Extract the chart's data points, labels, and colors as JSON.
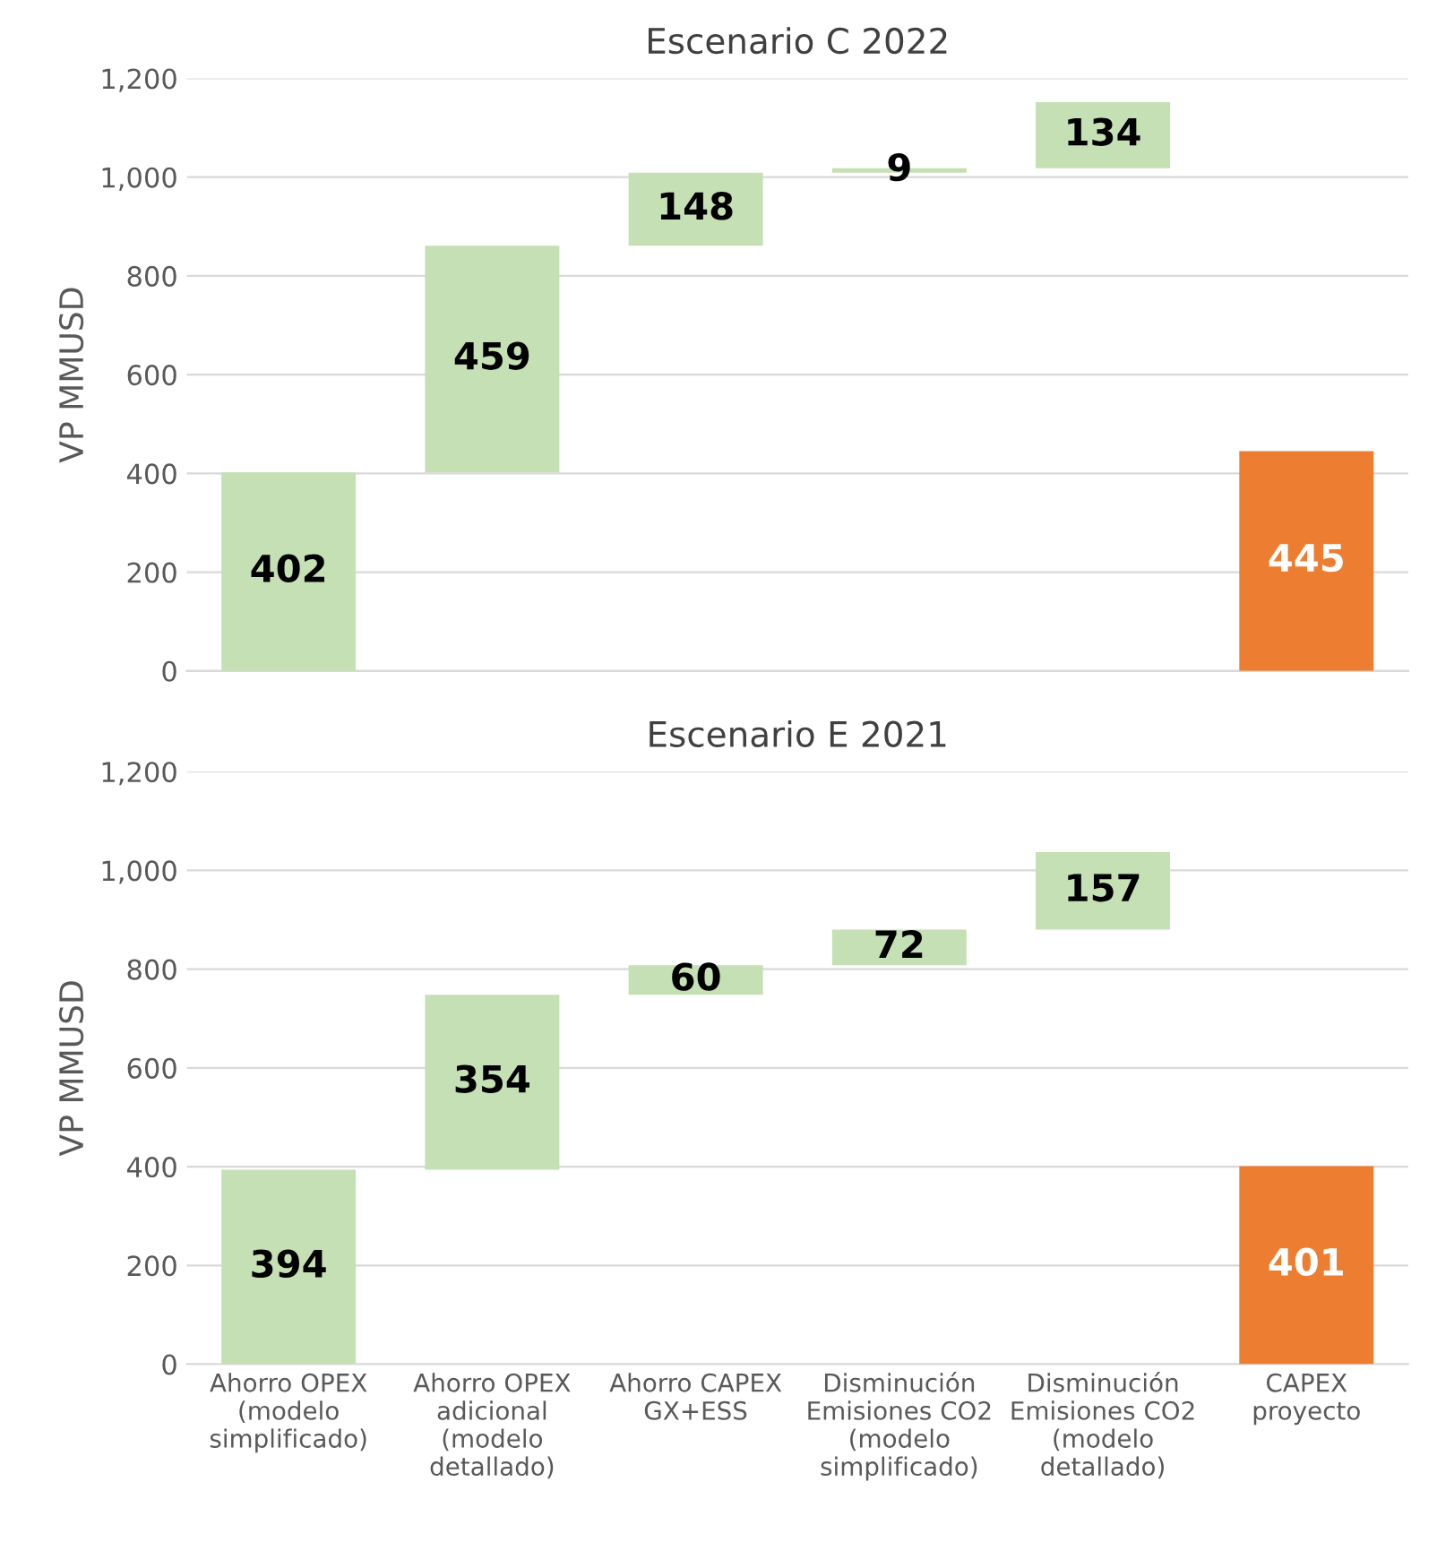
{
  "chart_data": [
    {
      "type": "bar",
      "title": "Escenario C 2022",
      "ylabel": "VP MMUSD",
      "categories": [
        null,
        null,
        null,
        null,
        null,
        null
      ],
      "values": [
        402,
        459,
        148,
        9,
        134,
        445
      ],
      "base": [
        0,
        402,
        861,
        1009,
        1018,
        0
      ],
      "colors": [
        "#c5e0b4",
        "#c5e0b4",
        "#c5e0b4",
        "#c5e0b4",
        "#c5e0b4",
        "#ed7d31"
      ],
      "ylim": [
        0,
        1200
      ],
      "yticks": [
        0,
        {
          "value": 200,
          "label": "200"
        },
        {
          "value": 400,
          "label": "400"
        },
        {
          "value": 600,
          "label": "600"
        },
        {
          "value": 800,
          "label": "800"
        },
        {
          "value": 1000,
          "label": "1,000"
        },
        {
          "value": 1200,
          "label": "1,200"
        }
      ],
      "grid": "y",
      "data_labels": true,
      "tick_labels": "y"
    },
    {
      "type": "bar",
      "title": "Escenario E 2021",
      "ylabel": "VP MMUSD",
      "categories": [
        "Ahorro OPEX\n(modelo\nsimplificado)",
        "Ahorro OPEX\nadicional\n(modelo\ndetallado)",
        "Ahorro CAPEX\nGX+ESS",
        "Disminución\nEmisiones CO2\n(modelo\nsimplificado)",
        "Disminución\nEmisiones CO2\n(modelo\ndetallado)",
        "CAPEX\nproyecto"
      ],
      "values": [
        394,
        354,
        60,
        72,
        157,
        401
      ],
      "base": [
        0,
        394,
        748,
        808,
        880,
        0
      ],
      "colors": [
        "#c5e0b4",
        "#c5e0b4",
        "#c5e0b4",
        "#c5e0b4",
        "#c5e0b4",
        "#ed7d31"
      ],
      "ylim": [
        0,
        1200
      ],
      "yticks": [
        0,
        {
          "value": 200,
          "label": "200"
        },
        {
          "value": 400,
          "label": "400"
        },
        {
          "value": 600,
          "label": "600"
        },
        {
          "value": 800,
          "label": "800"
        },
        {
          "value": 1000,
          "label": "1,000"
        },
        {
          "value": 1200,
          "label": "1,200"
        }
      ],
      "grid": "y",
      "data_labels": true
    }
  ]
}
